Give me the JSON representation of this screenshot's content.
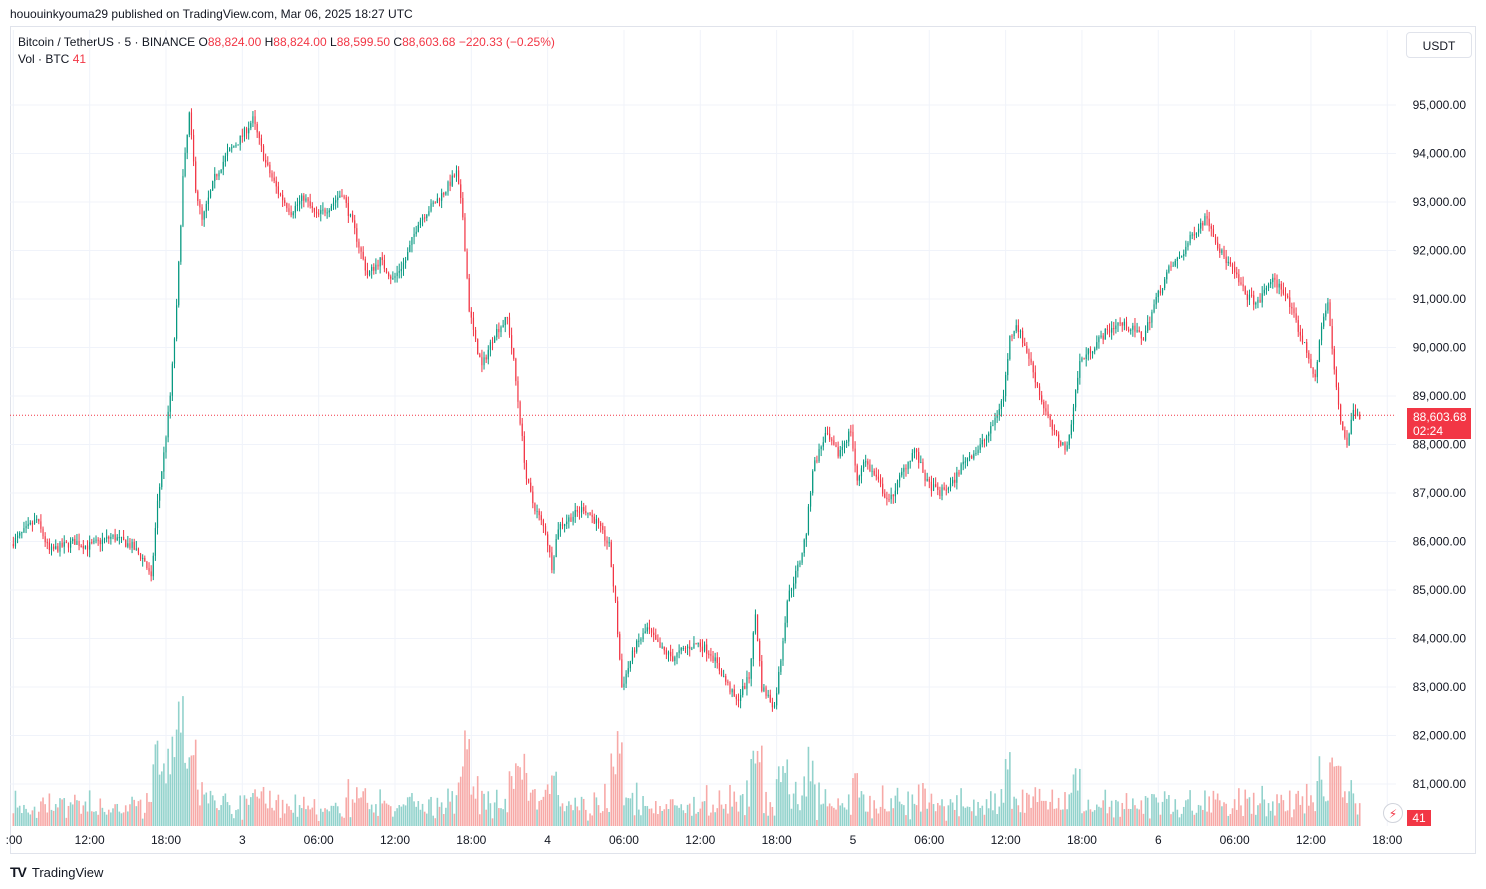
{
  "publisher_line": "hououinkyouma29 published on TradingView.com, Mar 06, 2025 18:27 UTC",
  "legend": {
    "symbol": "Bitcoin / TetherUS · 5 · BINANCE",
    "o_label": "O",
    "o_value": "88,824.00",
    "h_label": "H",
    "h_value": "88,824.00",
    "l_label": "L",
    "l_value": "88,599.50",
    "c_label": "C",
    "c_value": "88,603.68",
    "change": "−220.33 (−0.25%)",
    "vol_label": "Vol · BTC",
    "vol_value": "41"
  },
  "currency_button": "USDT",
  "last_price": {
    "price": "88,603.68",
    "countdown": "02:24"
  },
  "volume_badge": "41",
  "footer": {
    "logo": "TV",
    "brand": "TradingView"
  },
  "colors": {
    "up": "#089981",
    "down": "#f23645",
    "vol_up": "#92d2cc",
    "vol_down": "#f7a9a7",
    "grid": "#f0f3fa"
  },
  "chart_data": {
    "type": "candlestick",
    "symbol": "Bitcoin / TetherUS",
    "interval": "5",
    "exchange": "BINANCE",
    "ylim": [
      80000,
      96000
    ],
    "y_ticks": [
      "95,000.00",
      "94,000.00",
      "93,000.00",
      "92,000.00",
      "91,000.00",
      "90,000.00",
      "89,000.00",
      "88,000.00",
      "87,000.00",
      "86,000.00",
      "85,000.00",
      "84,000.00",
      "83,000.00",
      "82,000.00",
      "81,000.00"
    ],
    "x_ticks": [
      ":00",
      "12:00",
      "18:00",
      "3",
      "06:00",
      "12:00",
      "18:00",
      "4",
      "06:00",
      "12:00",
      "18:00",
      "5",
      "06:00",
      "12:00",
      "18:00",
      "6",
      "06:00",
      "12:00",
      "18:00"
    ],
    "x_tick_hours": [
      6,
      12,
      18,
      24,
      30,
      36,
      42,
      48,
      54,
      60,
      66,
      72,
      78,
      84,
      90,
      96,
      102,
      108,
      114
    ],
    "hour_range": [
      6,
      115
    ],
    "price_path": [
      [
        6,
        85950
      ],
      [
        8,
        86450
      ],
      [
        9,
        85800
      ],
      [
        11,
        86000
      ],
      [
        12,
        85900
      ],
      [
        14,
        86100
      ],
      [
        15.5,
        85900
      ],
      [
        16.5,
        85600
      ],
      [
        17,
        85200
      ],
      [
        17.5,
        86800
      ],
      [
        18,
        87800
      ],
      [
        18.5,
        89000
      ],
      [
        19,
        90800
      ],
      [
        19.5,
        93500
      ],
      [
        20,
        94800
      ],
      [
        20.5,
        93300
      ],
      [
        21,
        92600
      ],
      [
        22,
        93500
      ],
      [
        23,
        94000
      ],
      [
        24,
        94300
      ],
      [
        25,
        94700
      ],
      [
        26,
        93800
      ],
      [
        27,
        93200
      ],
      [
        28,
        92800
      ],
      [
        29,
        93100
      ],
      [
        30,
        92700
      ],
      [
        31,
        92900
      ],
      [
        32,
        93200
      ],
      [
        33,
        92400
      ],
      [
        34,
        91500
      ],
      [
        35,
        91800
      ],
      [
        36,
        91400
      ],
      [
        37,
        91800
      ],
      [
        38,
        92600
      ],
      [
        39,
        92900
      ],
      [
        40,
        93200
      ],
      [
        41,
        93600
      ],
      [
        41.5,
        92700
      ],
      [
        42,
        90800
      ],
      [
        42.5,
        90100
      ],
      [
        43,
        89600
      ],
      [
        44,
        90300
      ],
      [
        45,
        90600
      ],
      [
        45.5,
        89700
      ],
      [
        46,
        88500
      ],
      [
        46.5,
        87300
      ],
      [
        47,
        86800
      ],
      [
        48,
        86200
      ],
      [
        48.5,
        85500
      ],
      [
        49,
        86300
      ],
      [
        50,
        86500
      ],
      [
        51,
        86700
      ],
      [
        52,
        86400
      ],
      [
        53,
        85900
      ],
      [
        53.5,
        84700
      ],
      [
        54,
        83000
      ],
      [
        55,
        83800
      ],
      [
        56,
        84200
      ],
      [
        57,
        83800
      ],
      [
        58,
        83600
      ],
      [
        59,
        83800
      ],
      [
        60,
        83900
      ],
      [
        61,
        83700
      ],
      [
        62,
        83200
      ],
      [
        63,
        82700
      ],
      [
        64,
        83200
      ],
      [
        64.5,
        84500
      ],
      [
        65,
        83000
      ],
      [
        66,
        82600
      ],
      [
        66.5,
        83600
      ],
      [
        67,
        84800
      ],
      [
        68,
        85600
      ],
      [
        68.5,
        86200
      ],
      [
        69,
        87500
      ],
      [
        70,
        88200
      ],
      [
        71,
        87800
      ],
      [
        72,
        88300
      ],
      [
        72.5,
        87200
      ],
      [
        73,
        87700
      ],
      [
        74,
        87300
      ],
      [
        75,
        86800
      ],
      [
        76,
        87400
      ],
      [
        77,
        87900
      ],
      [
        78,
        87200
      ],
      [
        79,
        87000
      ],
      [
        80,
        87200
      ],
      [
        81,
        87700
      ],
      [
        82,
        87900
      ],
      [
        83,
        88300
      ],
      [
        84,
        89000
      ],
      [
        84.5,
        90200
      ],
      [
        85,
        90500
      ],
      [
        86,
        89800
      ],
      [
        87,
        88900
      ],
      [
        88,
        88200
      ],
      [
        89,
        87900
      ],
      [
        89.5,
        88800
      ],
      [
        90,
        89700
      ],
      [
        91,
        90000
      ],
      [
        92,
        90300
      ],
      [
        93,
        90500
      ],
      [
        94,
        90400
      ],
      [
        95,
        90200
      ],
      [
        96,
        91000
      ],
      [
        97,
        91600
      ],
      [
        98,
        91900
      ],
      [
        99,
        92400
      ],
      [
        100,
        92700
      ],
      [
        101,
        92000
      ],
      [
        102,
        91600
      ],
      [
        103,
        91100
      ],
      [
        104,
        90900
      ],
      [
        105,
        91400
      ],
      [
        106,
        91200
      ],
      [
        107,
        90500
      ],
      [
        108,
        89800
      ],
      [
        108.5,
        89300
      ],
      [
        109,
        90500
      ],
      [
        109.5,
        90900
      ],
      [
        110,
        89500
      ],
      [
        110.5,
        88500
      ],
      [
        111,
        88000
      ],
      [
        111.5,
        88700
      ],
      [
        112,
        88603.68
      ]
    ],
    "last_price": 88603.68
  }
}
